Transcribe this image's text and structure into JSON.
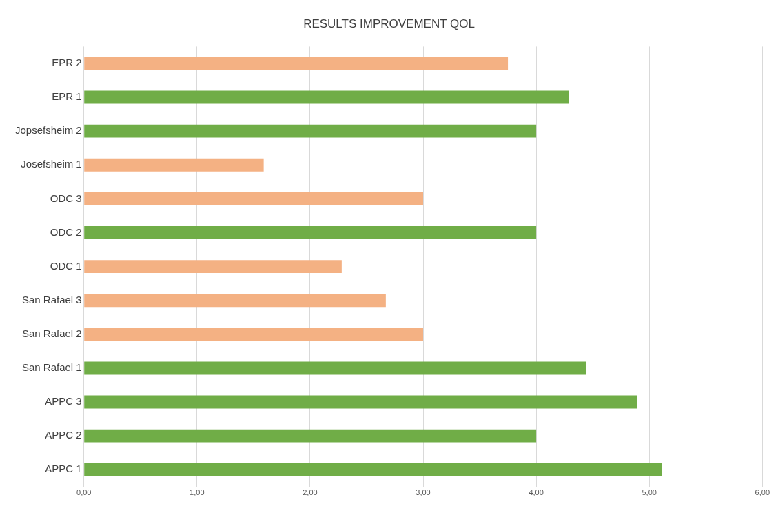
{
  "chart_data": {
    "type": "bar",
    "orientation": "horizontal",
    "title": "RESULTS IMPROVEMENT QOL",
    "categories": [
      "EPR 2",
      "EPR 1",
      "Jopsefsheim 2",
      "Josefsheim 1",
      "ODC 3",
      "ODC 2",
      "ODC 1",
      "San Rafael 3",
      "San Rafael 2",
      "San Rafael 1",
      "APPC 3",
      "APPC 2",
      "APPC 1"
    ],
    "values": [
      3.75,
      4.29,
      4.0,
      1.59,
      3.0,
      4.0,
      2.28,
      2.67,
      3.0,
      4.44,
      4.89,
      4.0,
      5.11
    ],
    "colors": [
      "#f4b183",
      "#70ad47",
      "#70ad47",
      "#f4b183",
      "#f4b183",
      "#70ad47",
      "#f4b183",
      "#f4b183",
      "#f4b183",
      "#70ad47",
      "#70ad47",
      "#70ad47",
      "#70ad47"
    ],
    "xlim": [
      0,
      6
    ],
    "xticks": [
      {
        "value": 0,
        "label": "0,00"
      },
      {
        "value": 1,
        "label": "1,00"
      },
      {
        "value": 2,
        "label": "2,00"
      },
      {
        "value": 3,
        "label": "3,00"
      },
      {
        "value": 4,
        "label": "4,00"
      },
      {
        "value": 5,
        "label": "5,00"
      },
      {
        "value": 6,
        "label": "6,00"
      }
    ],
    "grid": "x",
    "legend": false
  }
}
